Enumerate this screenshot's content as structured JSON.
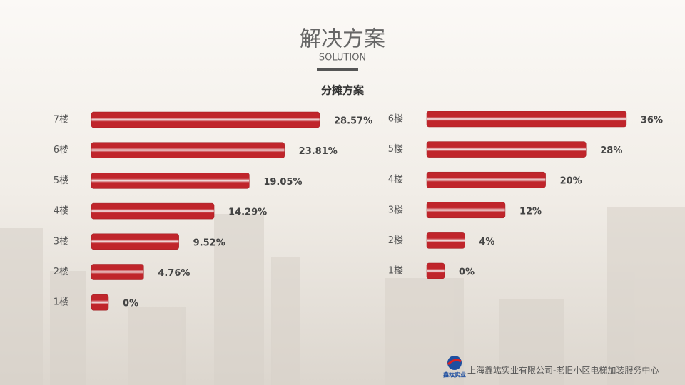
{
  "header": {
    "title": "解决方案",
    "subtitle": "SOLUTION",
    "section": "分摊方案"
  },
  "chart_data": [
    {
      "type": "bar",
      "orientation": "horizontal",
      "color": "#c0252b",
      "categories": [
        "7楼",
        "6楼",
        "5楼",
        "4楼",
        "3楼",
        "2楼",
        "1楼"
      ],
      "values": [
        28.57,
        23.81,
        19.05,
        14.29,
        9.52,
        4.76,
        0
      ],
      "value_labels": [
        "28.57%",
        "23.81%",
        "19.05%",
        "14.29%",
        "9.52%",
        "4.76%",
        "0%"
      ]
    },
    {
      "type": "bar",
      "orientation": "horizontal",
      "color": "#c0252b",
      "categories": [
        "6楼",
        "5楼",
        "4楼",
        "3楼",
        "2楼",
        "1楼"
      ],
      "values": [
        36,
        28,
        20,
        12,
        4,
        0
      ],
      "value_labels": [
        "36%",
        "28%",
        "20%",
        "12%",
        "4%",
        "0%"
      ]
    }
  ],
  "footer": {
    "logo": "鑫竑实业",
    "text": "上海鑫竑实业有限公司-老旧小区电梯加装服务中心"
  }
}
